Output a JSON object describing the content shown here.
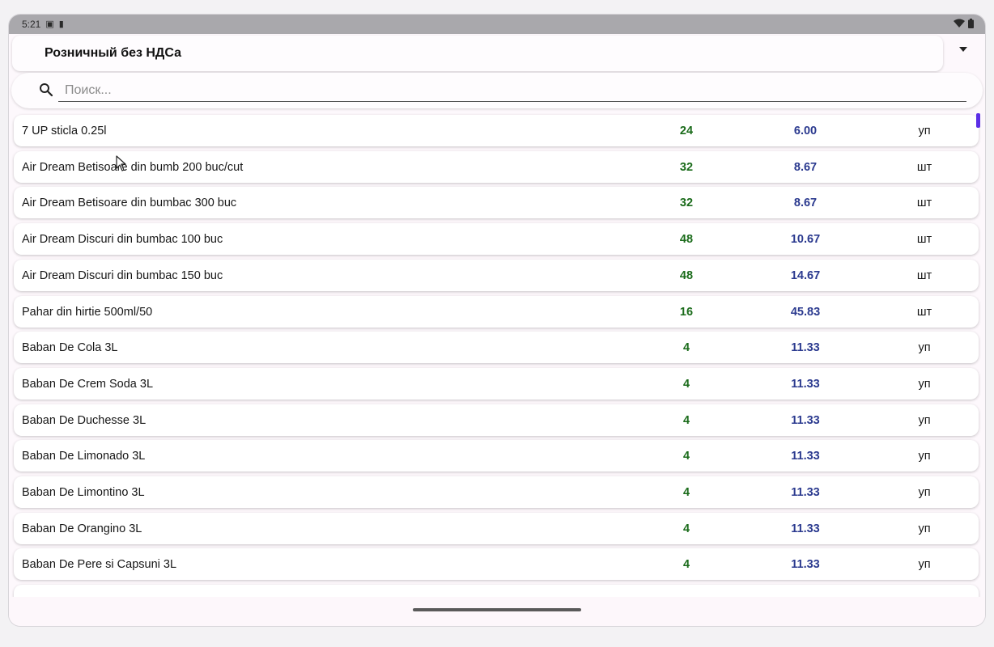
{
  "status_bar": {
    "time": "5:21",
    "left_icons": [
      "sim-icon",
      "sd-card-icon"
    ],
    "right_icons": [
      "wifi-icon",
      "battery-icon"
    ]
  },
  "price_type": {
    "selected": "Розничный без НДСа"
  },
  "search": {
    "value": "",
    "placeholder": "Поиск..."
  },
  "products": [
    {
      "name": "7 UP sticla 0.25l",
      "qty": "24",
      "price": "6.00",
      "unit": "уп"
    },
    {
      "name": "Air Dream Betisoare din bumb 200 buc/cut",
      "qty": "32",
      "price": "8.67",
      "unit": "шт"
    },
    {
      "name": "Air Dream Betisoare din bumbac 300 buc",
      "qty": "32",
      "price": "8.67",
      "unit": "шт"
    },
    {
      "name": "Air Dream Discuri din bumbac 100 buc",
      "qty": "48",
      "price": "10.67",
      "unit": "шт"
    },
    {
      "name": "Air Dream Discuri din bumbac 150 buc",
      "qty": "48",
      "price": "14.67",
      "unit": "шт"
    },
    {
      "name": "Pahar din hirtie 500ml/50",
      "qty": "16",
      "price": "45.83",
      "unit": "шт"
    },
    {
      "name": "Baban De Cola 3L",
      "qty": "4",
      "price": "11.33",
      "unit": "уп"
    },
    {
      "name": "Baban De Crem Soda 3L",
      "qty": "4",
      "price": "11.33",
      "unit": "уп"
    },
    {
      "name": "Baban De Duchesse 3L",
      "qty": "4",
      "price": "11.33",
      "unit": "уп"
    },
    {
      "name": "Baban De Limonado 3L",
      "qty": "4",
      "price": "11.33",
      "unit": "уп"
    },
    {
      "name": "Baban De Limontino 3L",
      "qty": "4",
      "price": "11.33",
      "unit": "уп"
    },
    {
      "name": "Baban De Orangino 3L",
      "qty": "4",
      "price": "11.33",
      "unit": "уп"
    },
    {
      "name": "Baban De Pere si Capsuni 3L",
      "qty": "4",
      "price": "11.33",
      "unit": "уп"
    },
    {
      "name": "",
      "qty": "",
      "price": "",
      "unit": ""
    }
  ],
  "colors": {
    "qty": "#1a6b1a",
    "price": "#2b3a8f",
    "scroll_thumb": "#5b2ee6"
  }
}
